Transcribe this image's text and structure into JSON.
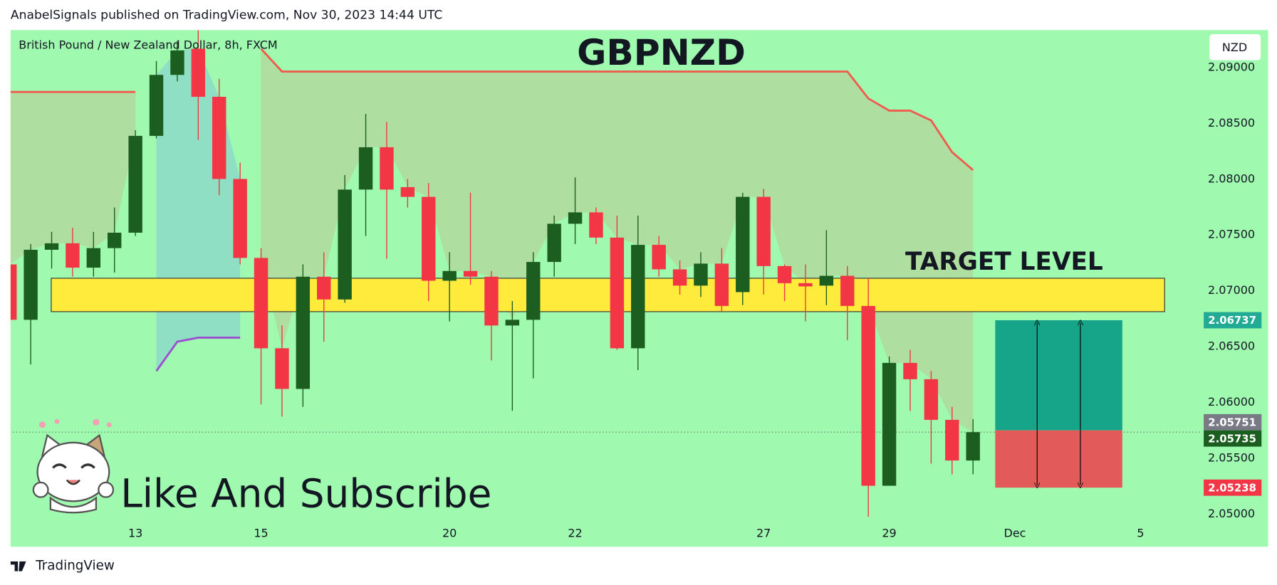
{
  "header": "AnabelSignals published on TradingView.com, Nov 30, 2023 14:44 UTC",
  "brand": "TradingView",
  "chart_data": {
    "type": "candlestick",
    "title": "GBPNZD",
    "symbol": "British Pound / New Zealand Dollar, 8h, FXCM",
    "currency": "NZD",
    "caption": "Like And Subscribe",
    "up_color": "#1b5e20",
    "down_color": "#f23645",
    "x": [
      0,
      1,
      2,
      3,
      4,
      5,
      6,
      7,
      8,
      9,
      10,
      11,
      12,
      13,
      14,
      15,
      16,
      17,
      18,
      19,
      20,
      21,
      22,
      23,
      24,
      25,
      26,
      27,
      28,
      29,
      30,
      31,
      32,
      33,
      34,
      35,
      36,
      37,
      38,
      39,
      40,
      41,
      42,
      43,
      44,
      45,
      46
    ],
    "open": [
      2.07237,
      2.06741,
      2.07368,
      2.07426,
      2.07208,
      2.07383,
      2.07521,
      2.08388,
      2.08934,
      2.09168,
      2.08738,
      2.08002,
      2.07295,
      2.06486,
      2.06122,
      2.07127,
      2.06923,
      2.07907,
      2.08286,
      2.07929,
      2.07842,
      2.07091,
      2.07178,
      2.07127,
      2.0669,
      2.06741,
      2.07259,
      2.07601,
      2.07703,
      2.07477,
      2.06486,
      2.07412,
      2.07193,
      2.07047,
      2.07244,
      2.06989,
      2.07842,
      2.07222,
      2.07069,
      2.07047,
      2.07135,
      2.06865,
      2.05255,
      2.06355,
      2.06209,
      2.05845,
      2.05481
    ],
    "high": [
      2.07273,
      2.07419,
      2.07528,
      2.07565,
      2.07528,
      2.07747,
      2.08439,
      2.09058,
      2.0924,
      2.09335,
      2.08898,
      2.08148,
      2.07383,
      2.0669,
      2.07237,
      2.07346,
      2.08038,
      2.08585,
      2.08512,
      2.08002,
      2.07965,
      2.07346,
      2.07878,
      2.07178,
      2.06909,
      2.07346,
      2.07674,
      2.08016,
      2.07747,
      2.07674,
      2.07674,
      2.07492,
      2.07273,
      2.07346,
      2.07383,
      2.07878,
      2.07914,
      2.07237,
      2.07237,
      2.07543,
      2.07222,
      2.07113,
      2.06413,
      2.06472,
      2.06282,
      2.05962,
      2.05852
    ],
    "low": [
      2.06727,
      2.06341,
      2.072,
      2.07127,
      2.07127,
      2.07164,
      2.07492,
      2.08366,
      2.08876,
      2.08352,
      2.07856,
      2.07237,
      2.05984,
      2.05874,
      2.05962,
      2.06545,
      2.06894,
      2.07492,
      2.07288,
      2.07747,
      2.06909,
      2.06727,
      2.07055,
      2.06377,
      2.05925,
      2.06217,
      2.07127,
      2.07419,
      2.07419,
      2.06472,
      2.0629,
      2.07127,
      2.06967,
      2.06945,
      2.06814,
      2.06872,
      2.06967,
      2.06909,
      2.06727,
      2.06872,
      2.06559,
      2.04978,
      2.05255,
      2.05925,
      2.05452,
      2.05357,
      2.05357
    ],
    "close": [
      2.06741,
      2.07368,
      2.07426,
      2.07208,
      2.07383,
      2.07521,
      2.08388,
      2.08934,
      2.09153,
      2.08738,
      2.08002,
      2.07295,
      2.06486,
      2.06122,
      2.07127,
      2.06923,
      2.07907,
      2.08286,
      2.07907,
      2.07842,
      2.07091,
      2.07178,
      2.07127,
      2.0669,
      2.06741,
      2.07259,
      2.07601,
      2.07703,
      2.07477,
      2.06486,
      2.07412,
      2.07193,
      2.07047,
      2.07244,
      2.06865,
      2.07842,
      2.07222,
      2.07069,
      2.0704,
      2.07135,
      2.06865,
      2.05255,
      2.06355,
      2.06209,
      2.05845,
      2.05481,
      2.05735
    ],
    "lines": [
      {
        "color": "#f05a4f",
        "fill": "rgba(185,200,150,0.55)",
        "values": [
          2.08781,
          2.08781,
          2.08781,
          2.08781,
          2.08781,
          2.08781,
          2.08781,
          null,
          null,
          null,
          null,
          null,
          2.09168,
          2.08964,
          2.08964,
          2.08964,
          2.08964,
          2.08964,
          2.08964,
          2.08964,
          2.08964,
          2.08964,
          2.08964,
          2.08964,
          2.08964,
          2.08964,
          2.08964,
          2.08964,
          2.08964,
          2.08964,
          2.08964,
          2.08964,
          2.08964,
          2.08964,
          2.08964,
          2.08964,
          2.08964,
          2.08964,
          2.08964,
          2.08964,
          2.08964,
          2.08723,
          2.08614,
          2.08614,
          2.08526,
          2.08242,
          2.08082
        ]
      },
      {
        "color": "#9c4fd0",
        "fill": "rgba(120,185,230,0.4)",
        "values": [
          null,
          null,
          null,
          null,
          null,
          null,
          null,
          2.06282,
          2.06545,
          2.06581,
          2.06581,
          2.06581,
          null,
          null,
          null,
          null,
          null,
          null,
          null,
          null,
          null,
          null,
          null,
          null,
          null,
          null,
          null,
          null,
          null,
          null,
          null,
          null,
          null,
          null,
          null,
          null,
          null,
          null,
          null,
          null,
          null,
          null,
          null,
          null,
          null,
          null,
          null
        ]
      }
    ],
    "target_zone": {
      "label": "TARGET LEVEL",
      "low": 2.06814,
      "high": 2.07113,
      "x": [
        1.98,
        55.15
      ],
      "color": "#ffeb3b"
    },
    "position": {
      "x": [
        47.06,
        53.13
      ],
      "target": 2.06737,
      "entry": 2.05751,
      "stop": 2.05238,
      "profit_color": "#17a589",
      "loss_color": "#e35a5a",
      "target_color": "#22ab94",
      "entry_color": "#787b86",
      "stop_color": "#f23645"
    },
    "last_color": "#1b5e20",
    "xlim": [
      0,
      56.9
    ],
    "ylim": [
      2.0492,
      2.09335
    ],
    "xticks": [
      {
        "value": 6,
        "label": "13"
      },
      {
        "value": 12,
        "label": "15"
      },
      {
        "value": 21,
        "label": "20"
      },
      {
        "value": 27,
        "label": "22"
      },
      {
        "value": 36,
        "label": "27"
      },
      {
        "value": 42,
        "label": "29"
      },
      {
        "value": 48,
        "label": "Dec"
      },
      {
        "value": 54,
        "label": "5"
      }
    ],
    "yticks": [
      {
        "value": 2.05,
        "label": "2.05000"
      },
      {
        "value": 2.055,
        "label": "2.05500"
      },
      {
        "value": 2.06,
        "label": "2.06000"
      },
      {
        "value": 2.065,
        "label": "2.06500"
      },
      {
        "value": 2.07,
        "label": "2.07000"
      },
      {
        "value": 2.075,
        "label": "2.07500"
      },
      {
        "value": 2.08,
        "label": "2.08000"
      },
      {
        "value": 2.085,
        "label": "2.08500"
      },
      {
        "value": 2.09,
        "label": "2.09000"
      }
    ]
  }
}
